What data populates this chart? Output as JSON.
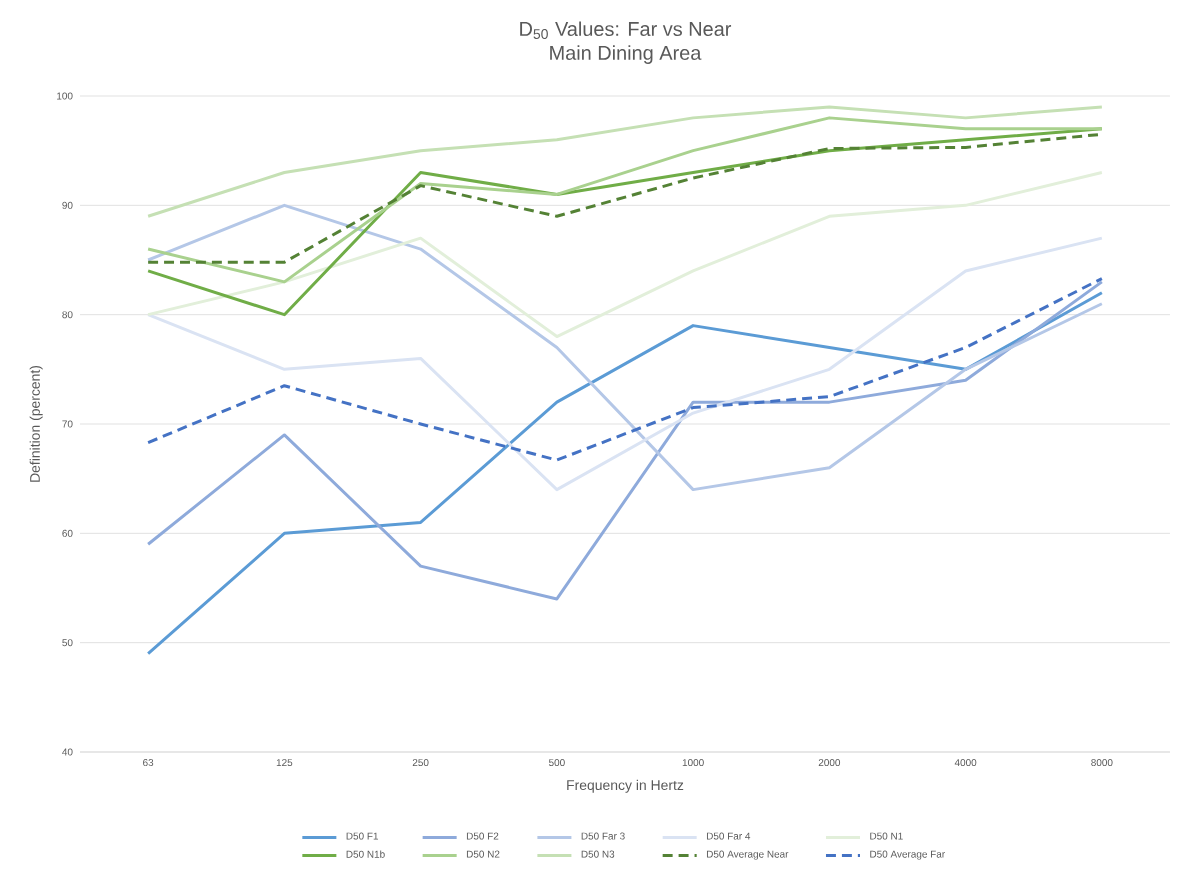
{
  "chart_data": {
    "type": "line",
    "title": "D$_{50}$ Values: Far vs Near",
    "subtitle": "Main Dining Area",
    "xlabel": "Frequency in Hertz",
    "ylabel": "Definition (percent)",
    "categories": [
      "63",
      "125",
      "250",
      "500",
      "1000",
      "2000",
      "4000",
      "8000"
    ],
    "ylim": [
      40,
      100
    ],
    "yticks": [
      40,
      50,
      60,
      70,
      80,
      90,
      100
    ],
    "grid": "y",
    "legend": "bottom",
    "series": [
      {
        "name": "D50 F1",
        "color": "#5b9bd5",
        "values": [
          49,
          60,
          61,
          72,
          79,
          77,
          75,
          82
        ]
      },
      {
        "name": "D50 F2",
        "color": "#8eaadb",
        "values": [
          59,
          69,
          57,
          54,
          72,
          72,
          74,
          83
        ]
      },
      {
        "name": "D50 Far 3",
        "color": "#b4c7e7",
        "values": [
          85,
          90,
          86,
          77,
          64,
          66,
          75,
          81
        ]
      },
      {
        "name": "D50 Far 4",
        "color": "#dae3f3",
        "values": [
          80,
          75,
          76,
          64,
          71,
          75,
          84,
          87
        ]
      },
      {
        "name": "D50 N1",
        "color": "#e2efda",
        "values": [
          80,
          83,
          87,
          78,
          84,
          89,
          90,
          93
        ]
      },
      {
        "name": "D50 N1b",
        "color": "#70ad47",
        "values": [
          84,
          80,
          93,
          91,
          93,
          95,
          96,
          97
        ]
      },
      {
        "name": "D50 N2",
        "color": "#a9d18e",
        "values": [
          86,
          83,
          92,
          91,
          95,
          98,
          97,
          97
        ]
      },
      {
        "name": "D50 N3",
        "color": "#c5e0b4",
        "values": [
          89,
          93,
          95,
          96,
          98,
          99,
          98,
          99
        ]
      },
      {
        "name": "D50 Average Near",
        "color": "#548235",
        "line_style": "dashed",
        "values": [
          84.8,
          84.8,
          91.8,
          89,
          92.5,
          95.2,
          95.3,
          96.5
        ]
      },
      {
        "name": "D50 Average Far",
        "color": "#4472c4",
        "line_style": "dashed",
        "values": [
          68.3,
          73.5,
          70,
          66.7,
          71.5,
          72.5,
          77,
          83.3
        ]
      }
    ]
  }
}
